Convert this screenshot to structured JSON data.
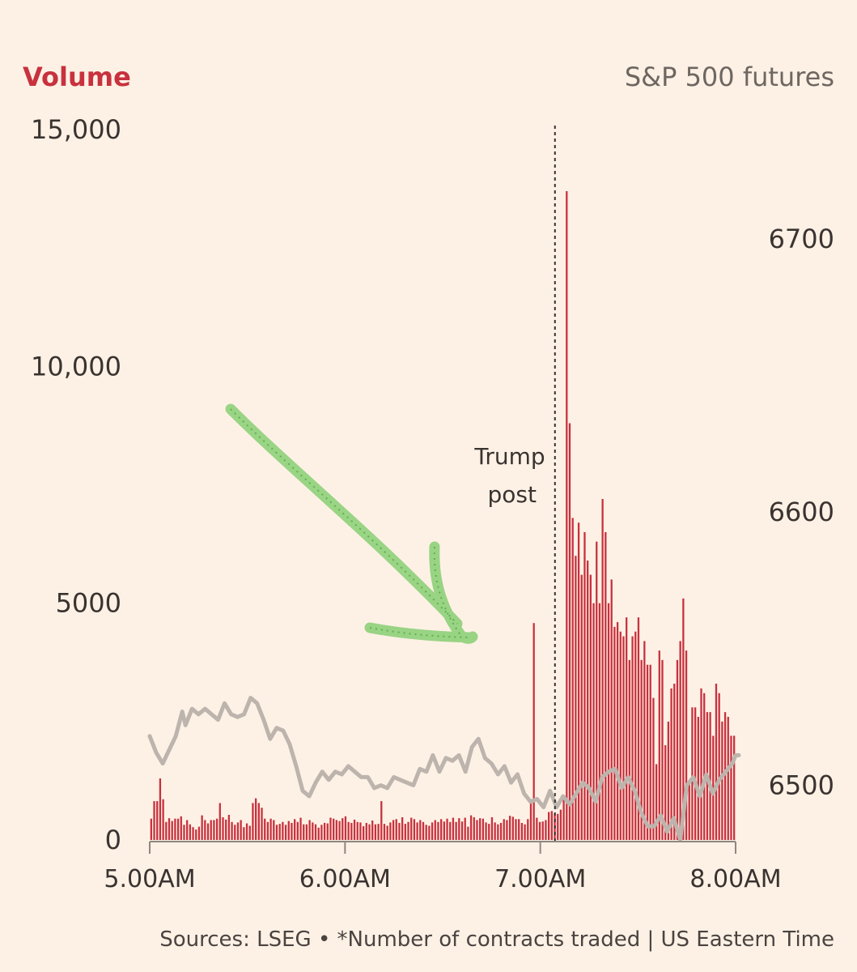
{
  "chart_data": {
    "type": "bar+line",
    "left_axis": {
      "title": "Volume",
      "ticks": [
        0,
        5000,
        10000,
        15000
      ],
      "tick_labels": [
        "0",
        "5000",
        "10,000",
        "15,000"
      ],
      "range": [
        0,
        15000
      ]
    },
    "right_axis": {
      "title": "S&P 500 futures",
      "ticks": [
        6500,
        6600,
        6700
      ],
      "tick_labels": [
        "6500",
        "6600",
        "6700"
      ],
      "range": [
        6480,
        6740
      ]
    },
    "x_axis": {
      "ticks": [
        0,
        60,
        120,
        180
      ],
      "tick_labels": [
        "5.00AM",
        "6.00AM",
        "7.00AM",
        "8.00AM"
      ],
      "range": [
        0,
        180
      ],
      "unit": "minutes after 5.00AM"
    },
    "volume_series": {
      "name": "Volume",
      "color": "#c8313e",
      "values": [
        450,
        820,
        820,
        1300,
        860,
        380,
        460,
        400,
        450,
        450,
        500,
        320,
        420,
        330,
        270,
        220,
        280,
        520,
        420,
        350,
        420,
        420,
        450,
        780,
        480,
        430,
        530,
        380,
        320,
        370,
        420,
        270,
        350,
        300,
        780,
        880,
        780,
        680,
        450,
        380,
        450,
        420,
        320,
        340,
        380,
        320,
        400,
        360,
        440,
        380,
        470,
        330,
        330,
        420,
        370,
        330,
        260,
        320,
        360,
        350,
        470,
        450,
        420,
        400,
        460,
        500,
        380,
        360,
        430,
        380,
        370,
        290,
        360,
        330,
        410,
        330,
        340,
        820,
        340,
        300,
        370,
        420,
        440,
        360,
        480,
        340,
        380,
        470,
        440,
        370,
        420,
        380,
        320,
        300,
        370,
        420,
        380,
        440,
        390,
        450,
        380,
        470,
        380,
        460,
        390,
        470,
        280,
        520,
        480,
        420,
        460,
        450,
        370,
        340,
        480,
        370,
        330,
        360,
        440,
        420,
        510,
        490,
        440,
        440,
        360,
        330,
        440,
        800,
        4580,
        470,
        380,
        390,
        420,
        590,
        610,
        560,
        550,
        640,
        870,
        13700,
        8800,
        6800,
        6000,
        6700,
        5600,
        6500,
        5900,
        5600,
        5000,
        6300,
        5000,
        7200,
        6500,
        5000,
        5500,
        4500,
        4600,
        4400,
        4300,
        4700,
        3800,
        4300,
        4400,
        4700,
        3800,
        4200,
        3700,
        3700,
        3000,
        1600,
        4000,
        3800,
        2000,
        2500,
        3200,
        3300,
        3800,
        4200,
        5100,
        4000,
        1200,
        2800,
        2800,
        2600,
        3200,
        3100,
        2700,
        2700,
        2200,
        3300,
        3100,
        2500,
        2700,
        2600,
        2200,
        2200
      ],
      "note": "one bar per minute, 5.00AM to 8.00AM"
    },
    "price_series": {
      "name": "S&P 500 futures",
      "color": "#bdb4ad",
      "points": [
        [
          0,
          6518
        ],
        [
          2,
          6512
        ],
        [
          4,
          6508
        ],
        [
          6,
          6513
        ],
        [
          8,
          6518
        ],
        [
          10,
          6527
        ],
        [
          11,
          6522
        ],
        [
          13,
          6528
        ],
        [
          15,
          6526
        ],
        [
          17,
          6528
        ],
        [
          19,
          6526
        ],
        [
          21,
          6524
        ],
        [
          23,
          6530
        ],
        [
          25,
          6526
        ],
        [
          27,
          6525
        ],
        [
          29,
          6526
        ],
        [
          31,
          6532
        ],
        [
          33,
          6530
        ],
        [
          35,
          6524
        ],
        [
          37,
          6517
        ],
        [
          39,
          6521
        ],
        [
          41,
          6520
        ],
        [
          43,
          6515
        ],
        [
          45,
          6507
        ],
        [
          47,
          6498
        ],
        [
          49,
          6496
        ],
        [
          51,
          6501
        ],
        [
          53,
          6505
        ],
        [
          55,
          6502
        ],
        [
          57,
          6505
        ],
        [
          59,
          6504
        ],
        [
          61,
          6507
        ],
        [
          63,
          6505
        ],
        [
          65,
          6503
        ],
        [
          67,
          6503
        ],
        [
          69,
          6499
        ],
        [
          71,
          6500
        ],
        [
          73,
          6499
        ],
        [
          75,
          6503
        ],
        [
          77,
          6502
        ],
        [
          79,
          6501
        ],
        [
          81,
          6500
        ],
        [
          83,
          6506
        ],
        [
          85,
          6505
        ],
        [
          87,
          6511
        ],
        [
          89,
          6505
        ],
        [
          91,
          6510
        ],
        [
          93,
          6509
        ],
        [
          95,
          6511
        ],
        [
          97,
          6505
        ],
        [
          99,
          6514
        ],
        [
          101,
          6517
        ],
        [
          103,
          6510
        ],
        [
          105,
          6508
        ],
        [
          107,
          6504
        ],
        [
          109,
          6507
        ],
        [
          111,
          6501
        ],
        [
          113,
          6504
        ],
        [
          115,
          6497
        ],
        [
          117,
          6494
        ],
        [
          119,
          6495
        ],
        [
          121,
          6492
        ],
        [
          123,
          6498
        ],
        [
          125,
          6492
        ],
        [
          127,
          6496
        ],
        [
          129,
          6493
        ],
        [
          131,
          6497
        ],
        [
          133,
          6501
        ],
        [
          135,
          6499
        ],
        [
          137,
          6494
        ],
        [
          139,
          6503
        ],
        [
          141,
          6505
        ],
        [
          143,
          6506
        ],
        [
          145,
          6499
        ],
        [
          147,
          6503
        ],
        [
          149,
          6498
        ],
        [
          151,
          6490
        ],
        [
          153,
          6485
        ],
        [
          155,
          6485
        ],
        [
          157,
          6489
        ],
        [
          159,
          6483
        ],
        [
          161,
          6488
        ],
        [
          163,
          6480
        ],
        [
          165,
          6500
        ],
        [
          167,
          6503
        ],
        [
          169,
          6496
        ],
        [
          171,
          6504
        ],
        [
          173,
          6497
        ],
        [
          175,
          6502
        ],
        [
          177,
          6505
        ],
        [
          179,
          6508
        ],
        [
          180,
          6511
        ],
        [
          181,
          6511
        ]
      ]
    },
    "event_marker": {
      "label_lines": [
        "Trump",
        "post"
      ],
      "x": 124.5
    },
    "source_text": "Sources: LSEG • *Number of contracts traded | US Eastern Time"
  },
  "colors": {
    "background": "#fdf1e5",
    "volume_bar": "#c8313e",
    "price_line": "#bdb4ad",
    "text": "#3a3330",
    "axis": "#8f8781",
    "marker_line": "#333333",
    "annotation_arrow": "#8fd07a"
  }
}
